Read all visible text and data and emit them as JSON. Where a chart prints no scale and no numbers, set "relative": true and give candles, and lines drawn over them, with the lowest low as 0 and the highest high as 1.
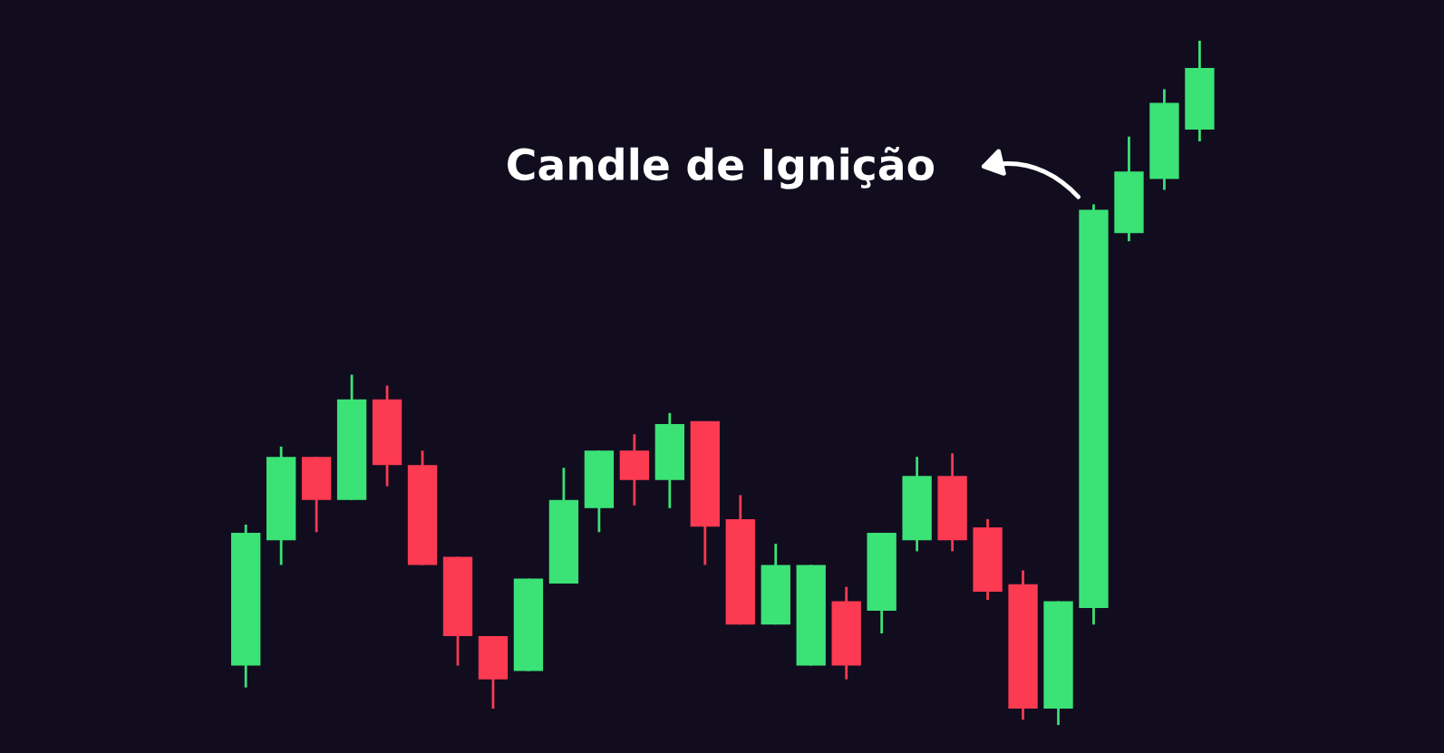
{
  "chart_data": {
    "type": "candlestick",
    "relative": true,
    "categories": [
      null,
      null,
      null,
      null,
      null,
      null,
      null,
      null,
      null,
      null,
      null,
      null,
      null,
      null,
      null,
      null,
      null,
      null,
      null,
      null,
      null,
      null,
      null,
      null,
      null,
      null,
      null,
      null
    ],
    "ohlc": [
      [
        0.087,
        0.293,
        0.055,
        0.281
      ],
      [
        0.27,
        0.407,
        0.234,
        0.392
      ],
      [
        0.392,
        0.392,
        0.282,
        0.329
      ],
      [
        0.329,
        0.512,
        0.329,
        0.476
      ],
      [
        0.476,
        0.496,
        0.349,
        0.38
      ],
      [
        0.38,
        0.401,
        0.234,
        0.234
      ],
      [
        0.246,
        0.246,
        0.087,
        0.13
      ],
      [
        0.13,
        0.13,
        0.024,
        0.067
      ],
      [
        0.079,
        0.214,
        0.079,
        0.214
      ],
      [
        0.207,
        0.376,
        0.207,
        0.329
      ],
      [
        0.317,
        0.401,
        0.282,
        0.401
      ],
      [
        0.401,
        0.425,
        0.321,
        0.358
      ],
      [
        0.358,
        0.456,
        0.317,
        0.44
      ],
      [
        0.444,
        0.444,
        0.234,
        0.29
      ],
      [
        0.301,
        0.336,
        0.147,
        0.147
      ],
      [
        0.147,
        0.265,
        0.147,
        0.234
      ],
      [
        0.087,
        0.234,
        0.087,
        0.234
      ],
      [
        0.181,
        0.202,
        0.067,
        0.087
      ],
      [
        0.167,
        0.281,
        0.134,
        0.281
      ],
      [
        0.27,
        0.392,
        0.254,
        0.364
      ],
      [
        0.364,
        0.397,
        0.254,
        0.27
      ],
      [
        0.289,
        0.301,
        0.183,
        0.195
      ],
      [
        0.206,
        0.226,
        0.008,
        0.024
      ],
      [
        0.024,
        0.181,
        0.0,
        0.181
      ],
      [
        0.171,
        0.761,
        0.147,
        0.753
      ],
      [
        0.719,
        0.86,
        0.707,
        0.809
      ],
      [
        0.798,
        0.929,
        0.782,
        0.909
      ],
      [
        0.87,
        1.0,
        0.853,
        0.96
      ]
    ],
    "colors": [
      "#3be275",
      "#3be275",
      "#fc3a52",
      "#3be275",
      "#fc3a52",
      "#fc3a52",
      "#fc3a52",
      "#fc3a52",
      "#3be275",
      "#3be275",
      "#3be275",
      "#fc3a52",
      "#3be275",
      "#fc3a52",
      "#fc3a52",
      "#3be275",
      "#3be275",
      "#fc3a52",
      "#3be275",
      "#3be275",
      "#fc3a52",
      "#fc3a52",
      "#fc3a52",
      "#3be275",
      "#3be275",
      "#3be275",
      "#3be275",
      "#3be275"
    ],
    "annotations": [
      "Candle de Ignição"
    ]
  }
}
